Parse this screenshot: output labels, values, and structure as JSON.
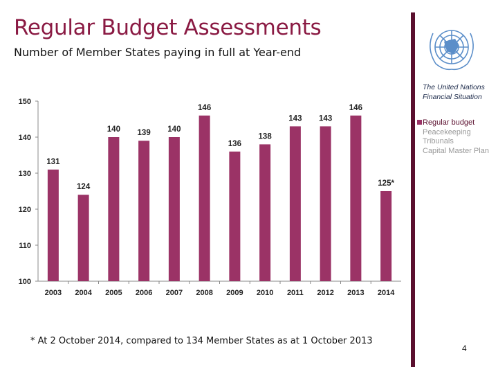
{
  "header": {
    "title": "Regular Budget Assessments",
    "subtitle": "Number of Member States paying in full at Year-end"
  },
  "side_panel": {
    "title_line1": "The United Nations",
    "title_line2": "Financial Situation",
    "logo": "united-nations-emblem",
    "legend": [
      {
        "label": "Regular budget",
        "active": true
      },
      {
        "label": "Peacekeeping",
        "active": false
      },
      {
        "label": "Tribunals",
        "active": false
      },
      {
        "label": "Capital Master Plan",
        "active": false
      }
    ]
  },
  "footnote": "* At 2 October 2014, compared to 134 Member States as at 1 October 2013",
  "page_number": "4",
  "colors": {
    "bar": "#9b3366",
    "title": "#8a1a43",
    "accent_bar": "#5a0f2e"
  },
  "chart_data": {
    "type": "bar",
    "categories": [
      "2003",
      "2004",
      "2005",
      "2006",
      "2007",
      "2008",
      "2009",
      "2010",
      "2011",
      "2012",
      "2013",
      "2014"
    ],
    "values": [
      131,
      124,
      140,
      139,
      140,
      146,
      136,
      138,
      143,
      143,
      146,
      125
    ],
    "data_labels": [
      "131",
      "124",
      "140",
      "139",
      "140",
      "146",
      "136",
      "138",
      "143",
      "143",
      "146",
      "125*"
    ],
    "ylim": [
      100,
      150
    ],
    "yticks": [
      100,
      110,
      120,
      130,
      140,
      150
    ],
    "grid": false,
    "title": "",
    "xlabel": "",
    "ylabel": ""
  }
}
